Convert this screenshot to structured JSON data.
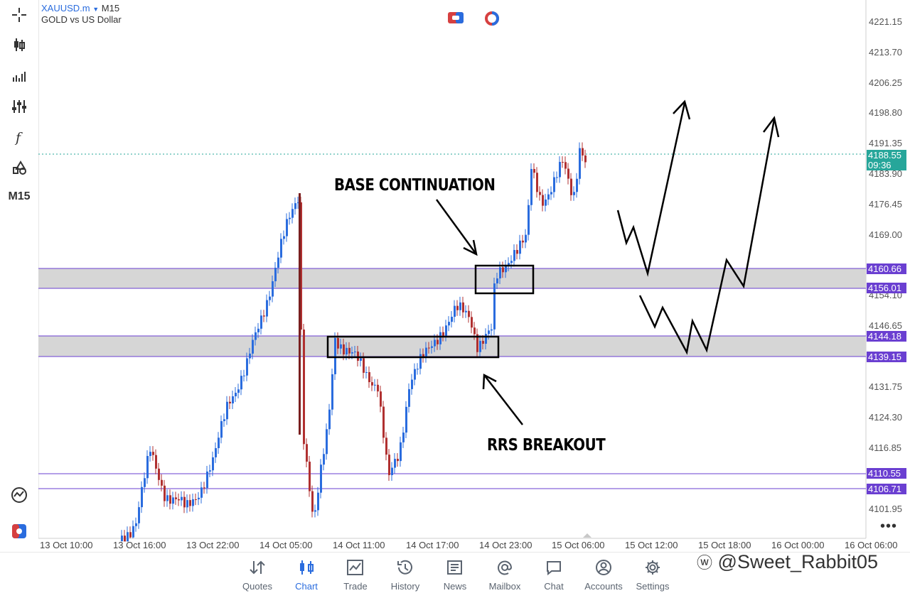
{
  "symbol": {
    "name": "XAUUSD.m",
    "timeframe": "M15",
    "description": "GOLD vs US Dollar"
  },
  "toolbar": {
    "timeframe_label": "M15",
    "icons": [
      "crosshair-icon",
      "candles-icon",
      "indicators-icon",
      "settings-sliders-icon",
      "function-icon",
      "objects-icon",
      "trading-signals-icon",
      "one-click-icon"
    ]
  },
  "price_axis": {
    "labels": [
      "4221.15",
      "4213.70",
      "4206.25",
      "4198.80",
      "4191.35",
      "4183.90",
      "4176.45",
      "4169.00",
      "4154.10",
      "4146.65",
      "4131.75",
      "4124.30",
      "4116.85",
      "4101.95"
    ],
    "current_price": "4188.55",
    "countdown": "09:36",
    "levels": [
      "4160.66",
      "4156.01",
      "4144.18",
      "4139.15",
      "4110.55",
      "4106.71"
    ],
    "current_color": "#26a69a",
    "level_color": "#6a3fd1"
  },
  "time_axis": [
    "13 Oct 10:00",
    "13 Oct 16:00",
    "13 Oct 22:00",
    "14 Oct 05:00",
    "14 Oct 11:00",
    "14 Oct 17:00",
    "14 Oct 23:00",
    "15 Oct 06:00",
    "15 Oct 12:00",
    "15 Oct 18:00",
    "16 Oct 00:00",
    "16 Oct 06:00"
  ],
  "annotations": {
    "base_continuation": "BASE CONTINUATION",
    "rrs_breakout": "RRS BREAKOUT"
  },
  "colors": {
    "bull": "#2a6cde",
    "bear": "#b03030",
    "zone": "#d6d6d6"
  },
  "nav": [
    {
      "label": "Quotes",
      "icon": "quotes-icon"
    },
    {
      "label": "Chart",
      "icon": "chart-icon",
      "active": true
    },
    {
      "label": "Trade",
      "icon": "trade-icon"
    },
    {
      "label": "History",
      "icon": "history-icon"
    },
    {
      "label": "News",
      "icon": "news-icon"
    },
    {
      "label": "Mailbox",
      "icon": "mailbox-icon"
    },
    {
      "label": "Chat",
      "icon": "chat-icon"
    },
    {
      "label": "Accounts",
      "icon": "accounts-icon"
    },
    {
      "label": "Settings",
      "icon": "settings-icon"
    }
  ],
  "watermark": "@Sweet_Rabbit05"
}
